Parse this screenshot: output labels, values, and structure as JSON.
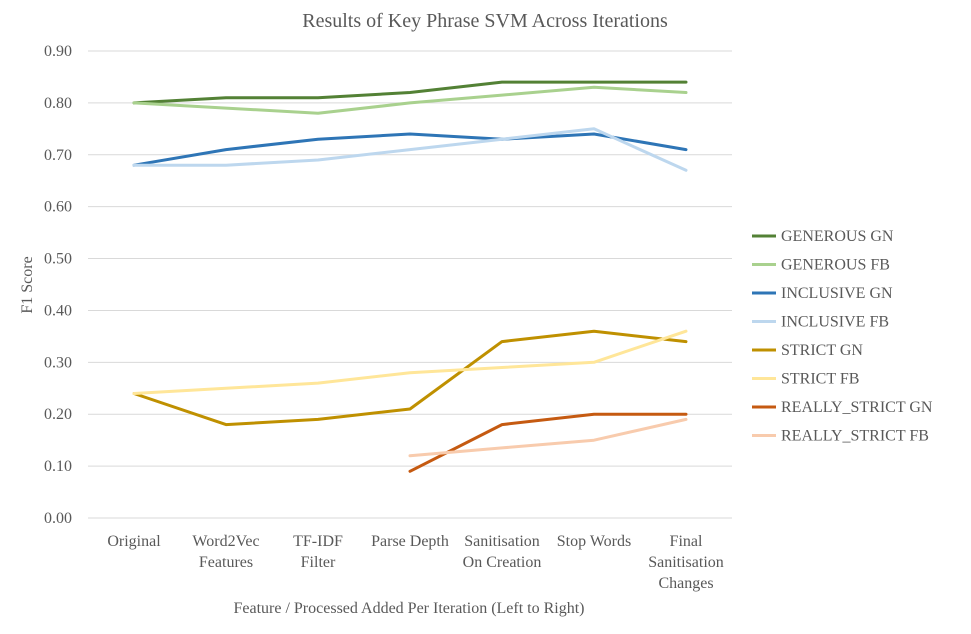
{
  "chart_data": {
    "type": "line",
    "title": "Results of Key Phrase SVM Across Iterations",
    "xlabel": "Feature / Processed Added Per Iteration (Left to Right)",
    "ylabel": "F1 Score",
    "ylim": [
      0,
      0.9
    ],
    "yticks": [
      "0.00",
      "0.10",
      "0.20",
      "0.30",
      "0.40",
      "0.50",
      "0.60",
      "0.70",
      "0.80",
      "0.90"
    ],
    "grid": true,
    "legend_position": "right",
    "categories": [
      [
        "Original"
      ],
      [
        "Word2Vec",
        "Features"
      ],
      [
        "TF-IDF",
        "Filter"
      ],
      [
        "Parse Depth"
      ],
      [
        "Sanitisation",
        "On Creation"
      ],
      [
        "Stop Words"
      ],
      [
        "Final",
        "Sanitisation",
        "Changes"
      ]
    ],
    "series": [
      {
        "name": "GENEROUS GN",
        "color": "#538135",
        "values": [
          0.8,
          0.81,
          0.81,
          0.82,
          0.84,
          0.84,
          0.84
        ]
      },
      {
        "name": "GENEROUS FB",
        "color": "#a9d18e",
        "values": [
          0.8,
          0.79,
          0.78,
          0.8,
          0.815,
          0.83,
          0.82
        ]
      },
      {
        "name": "INCLUSIVE GN",
        "color": "#2e75b6",
        "values": [
          0.68,
          0.71,
          0.73,
          0.74,
          0.73,
          0.74,
          0.71
        ]
      },
      {
        "name": "INCLUSIVE FB",
        "color": "#bdd7ee",
        "values": [
          0.68,
          0.68,
          0.69,
          0.71,
          0.73,
          0.75,
          0.67
        ]
      },
      {
        "name": "STRICT GN",
        "color": "#bf9000",
        "values": [
          0.24,
          0.18,
          0.19,
          0.21,
          0.34,
          0.36,
          0.34
        ]
      },
      {
        "name": "STRICT FB",
        "color": "#ffe699",
        "values": [
          0.24,
          0.25,
          0.26,
          0.28,
          0.29,
          0.3,
          0.36
        ]
      },
      {
        "name": "REALLY_STRICT GN",
        "color": "#c55a11",
        "values": [
          null,
          null,
          null,
          0.09,
          0.18,
          0.2,
          0.2
        ]
      },
      {
        "name": "REALLY_STRICT FB",
        "color": "#f8cbad",
        "values": [
          null,
          null,
          null,
          0.12,
          0.135,
          0.15,
          0.19
        ]
      }
    ]
  }
}
